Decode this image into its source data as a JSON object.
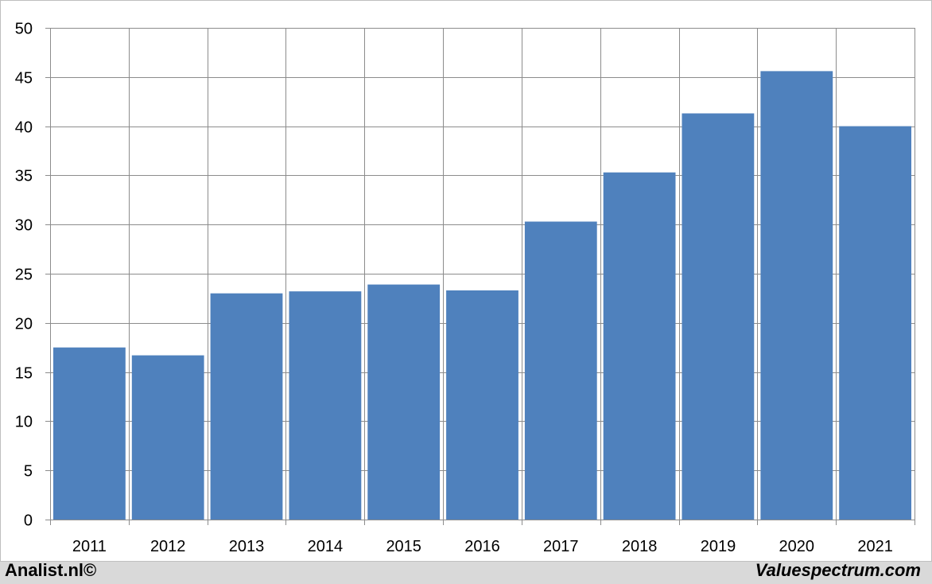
{
  "chart_data": {
    "type": "bar",
    "title": "",
    "xlabel": "",
    "ylabel": "",
    "categories": [
      "2011",
      "2012",
      "2013",
      "2014",
      "2015",
      "2016",
      "2017",
      "2018",
      "2019",
      "2020",
      "2021"
    ],
    "values": [
      17.5,
      16.7,
      23.0,
      23.2,
      23.9,
      23.3,
      30.3,
      35.3,
      41.3,
      45.6,
      40.0
    ],
    "ylim": [
      0,
      50
    ],
    "yticks": [
      0,
      5,
      10,
      15,
      20,
      25,
      30,
      35,
      40,
      45,
      50
    ],
    "grid": true,
    "bar_color": "#4f81bd",
    "grid_color": "#8c8c8c"
  },
  "footer": {
    "left_text": "Analist.nl©",
    "right_text": "Valuespectrum.com"
  }
}
